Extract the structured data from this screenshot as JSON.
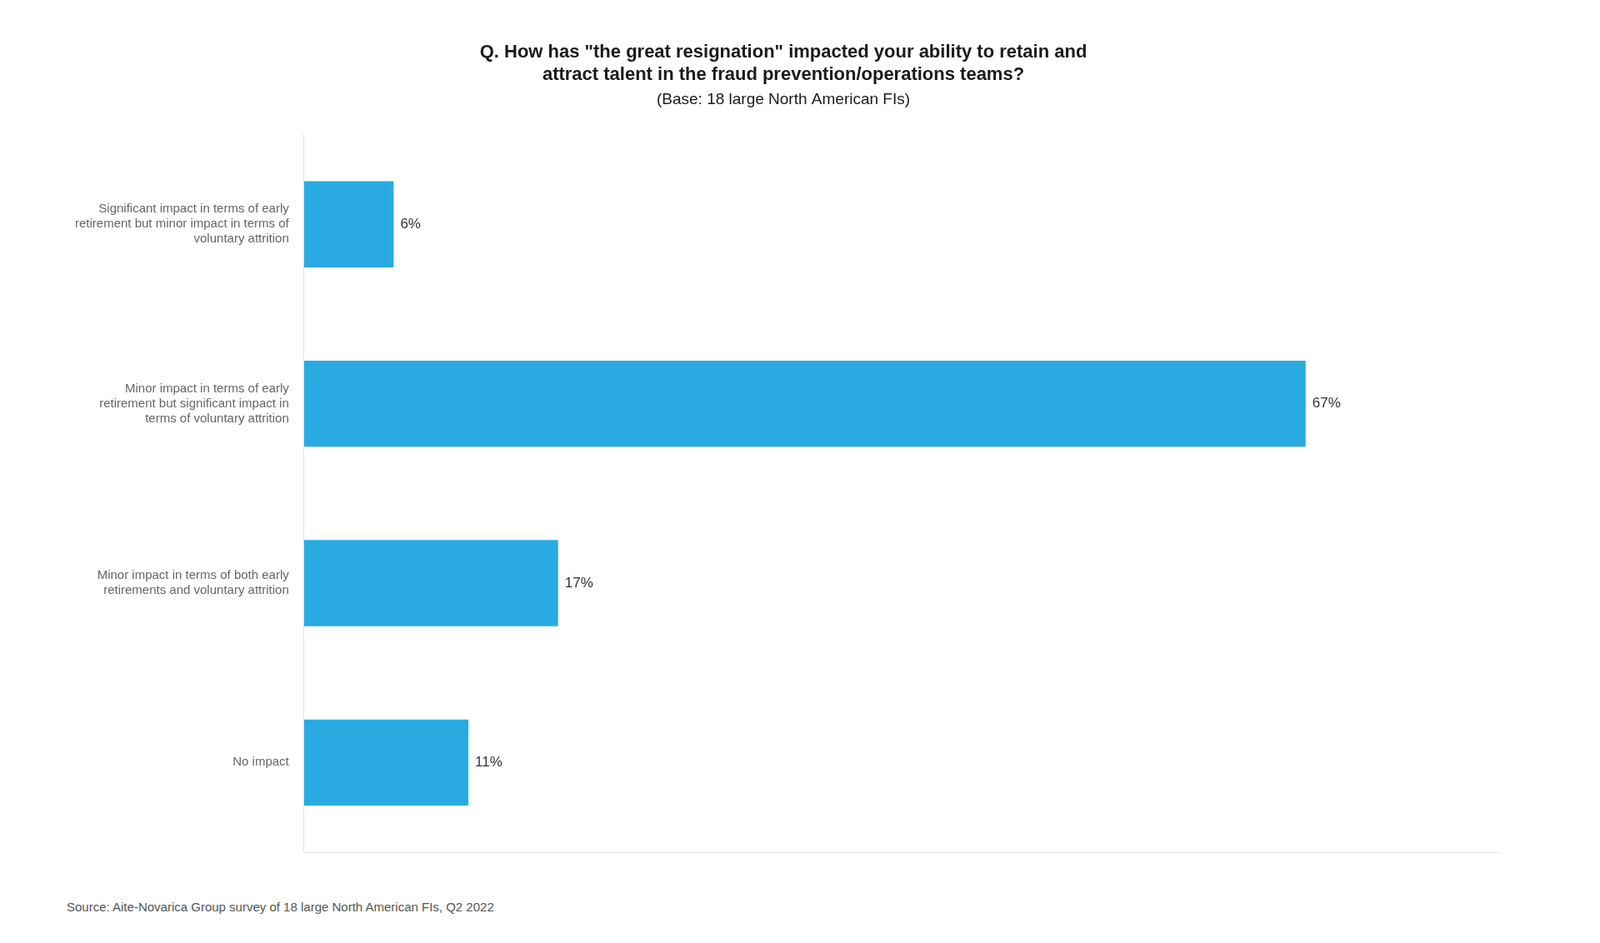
{
  "chart_data": {
    "type": "bar",
    "orientation": "horizontal",
    "title": [
      "Q. How has \"the great resignation\" impacted your ability to retain and",
      "attract talent in the fraud prevention/operations teams?"
    ],
    "subtitle": "(Base: 18 large North American FIs)",
    "annotations": [
      "Source: Aite-Novarica Group survey of 18 large North American FIs, Q2 2022"
    ],
    "categories": [
      "Significant impact in terms of early\nretirement but minor impact in terms of\nvoluntary attrition",
      "Minor impact in terms of early\nretirement but significant impact in\nterms of voluntary attrition",
      "Minor impact in terms of both early\nretirements and voluntary attrition",
      "No impact"
    ],
    "values": [
      6,
      67,
      17,
      11
    ],
    "value_labels": [
      "6%",
      "67%",
      "17%",
      "11%"
    ],
    "data_labels": true,
    "color": "#29ABE2",
    "xlim": [
      0,
      80
    ],
    "grid": false,
    "tick_labels": "y"
  }
}
